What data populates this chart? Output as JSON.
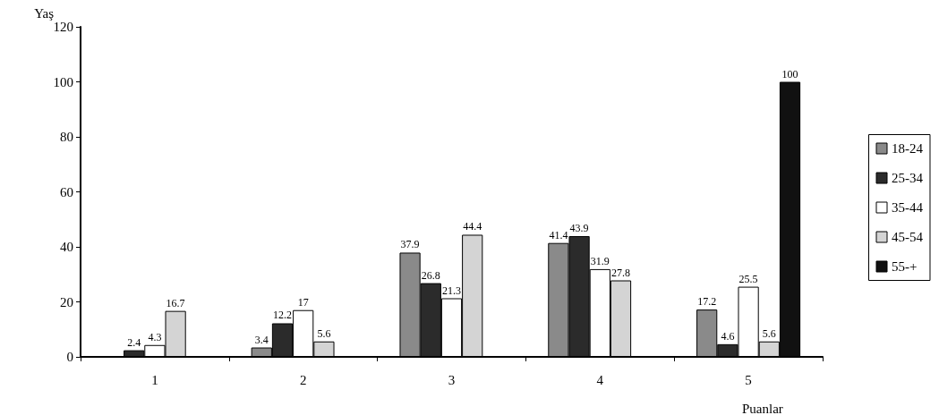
{
  "chart_data": {
    "type": "bar",
    "ylabel": "Yaş",
    "xlabel": "Puanlar",
    "categories": [
      "1",
      "2",
      "3",
      "4",
      "5"
    ],
    "series": [
      {
        "name": "18-24",
        "color": "#8a8a8a",
        "values": [
          null,
          3.4,
          37.9,
          41.4,
          17.2
        ]
      },
      {
        "name": "25-34",
        "color": "#2b2b2b",
        "values": [
          2.4,
          12.2,
          26.8,
          43.9,
          4.6
        ]
      },
      {
        "name": "35-44",
        "color": "#ffffff",
        "values": [
          4.3,
          17,
          21.3,
          31.9,
          25.5
        ]
      },
      {
        "name": "45-54",
        "color": "#d4d4d4",
        "values": [
          16.7,
          5.6,
          44.4,
          27.8,
          5.6
        ]
      },
      {
        "name": "55-+",
        "color": "#111111",
        "values": [
          null,
          null,
          null,
          null,
          100
        ]
      }
    ],
    "ylim": [
      0,
      120
    ],
    "yticks": [
      0,
      20,
      40,
      60,
      80,
      100,
      120
    ],
    "grid": false,
    "legend": "right",
    "data_labels": true
  }
}
